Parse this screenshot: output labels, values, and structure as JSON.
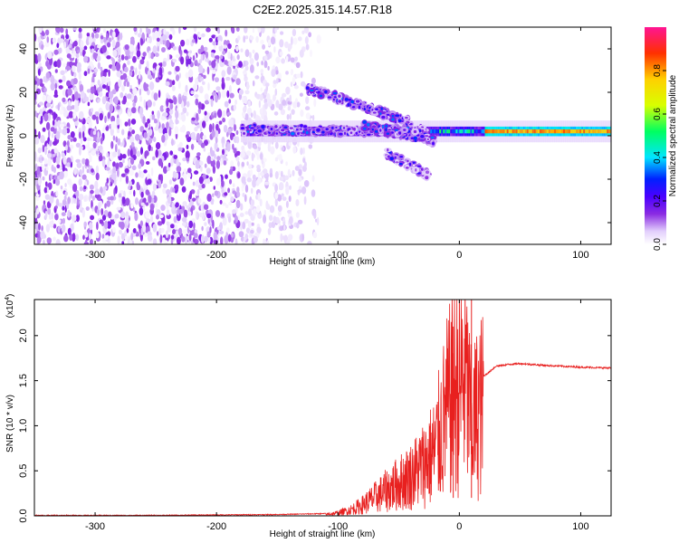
{
  "title": "C2E2.2025.315.14.57.R18",
  "chart_data": [
    {
      "type": "heatmap",
      "xlabel": "Height of straight line (km)",
      "ylabel": "Frequency (Hz)",
      "xlim": [
        -350,
        125
      ],
      "ylim": [
        -50,
        50
      ],
      "xticks": [
        -300,
        -200,
        -100,
        0,
        100
      ],
      "yticks": [
        -40,
        -20,
        0,
        20,
        40
      ],
      "colorbar": {
        "label": "Normalized spectral amplitude",
        "range": [
          0.0,
          1.0
        ],
        "ticks": [
          0.0,
          0.2,
          0.4,
          0.6,
          0.8
        ],
        "colormap": [
          "#ffffff",
          "#e2cffc",
          "#8a2be2",
          "#4b00ff",
          "#0020ff",
          "#00e5ff",
          "#00ff60",
          "#d8ff00",
          "#ffd000",
          "#ff3000",
          "#ff1493"
        ]
      },
      "features": {
        "noise_region_x": [
          -350,
          -135
        ],
        "carrier_line": {
          "x": [
            -180,
            125
          ],
          "frequency": 2,
          "amplitude_near_zero_km": 0.5,
          "amplitude_above_20_km": 0.85
        },
        "upper_branch": {
          "x": [
            -125,
            -40
          ],
          "frequency": [
            22,
            6
          ]
        },
        "lower_branch": {
          "x": [
            -60,
            -25
          ],
          "frequency": [
            -8,
            -18
          ]
        }
      }
    },
    {
      "type": "line",
      "xlabel": "Height of straight line (km)",
      "ylabel": "SNR (10 * v/v)",
      "multiplier": "(x10",
      "multiplier_exp": "4",
      "multiplier_close": ")",
      "xlim": [
        -350,
        125
      ],
      "ylim": [
        0,
        2.4
      ],
      "xticks": [
        -300,
        -200,
        -100,
        0,
        100
      ],
      "yticks": [
        "0.0",
        "0.5",
        "1.0",
        "1.5",
        "2.0"
      ],
      "line_color": "#e8201f",
      "series": [
        {
          "x": [
            -350,
            -250,
            -150,
            -110,
            -100,
            -90,
            -80,
            -70,
            -60,
            -50,
            -40,
            -30,
            -20,
            -15,
            -10,
            -5,
            0,
            5,
            10,
            12,
            15,
            20,
            25,
            30,
            40,
            50,
            70,
            100,
            125
          ],
          "y": [
            0.0,
            0.0,
            0.01,
            0.02,
            0.04,
            0.08,
            0.15,
            0.25,
            0.35,
            0.45,
            0.55,
            0.7,
            0.9,
            1.2,
            1.5,
            1.7,
            1.8,
            1.95,
            1.2,
            1.3,
            1.45,
            1.55,
            1.6,
            1.66,
            1.68,
            1.69,
            1.67,
            1.65,
            1.64
          ]
        }
      ],
      "spikes": [
        {
          "x": -5,
          "y": 2.1
        },
        {
          "x": 10,
          "y": 2.45
        }
      ]
    }
  ]
}
